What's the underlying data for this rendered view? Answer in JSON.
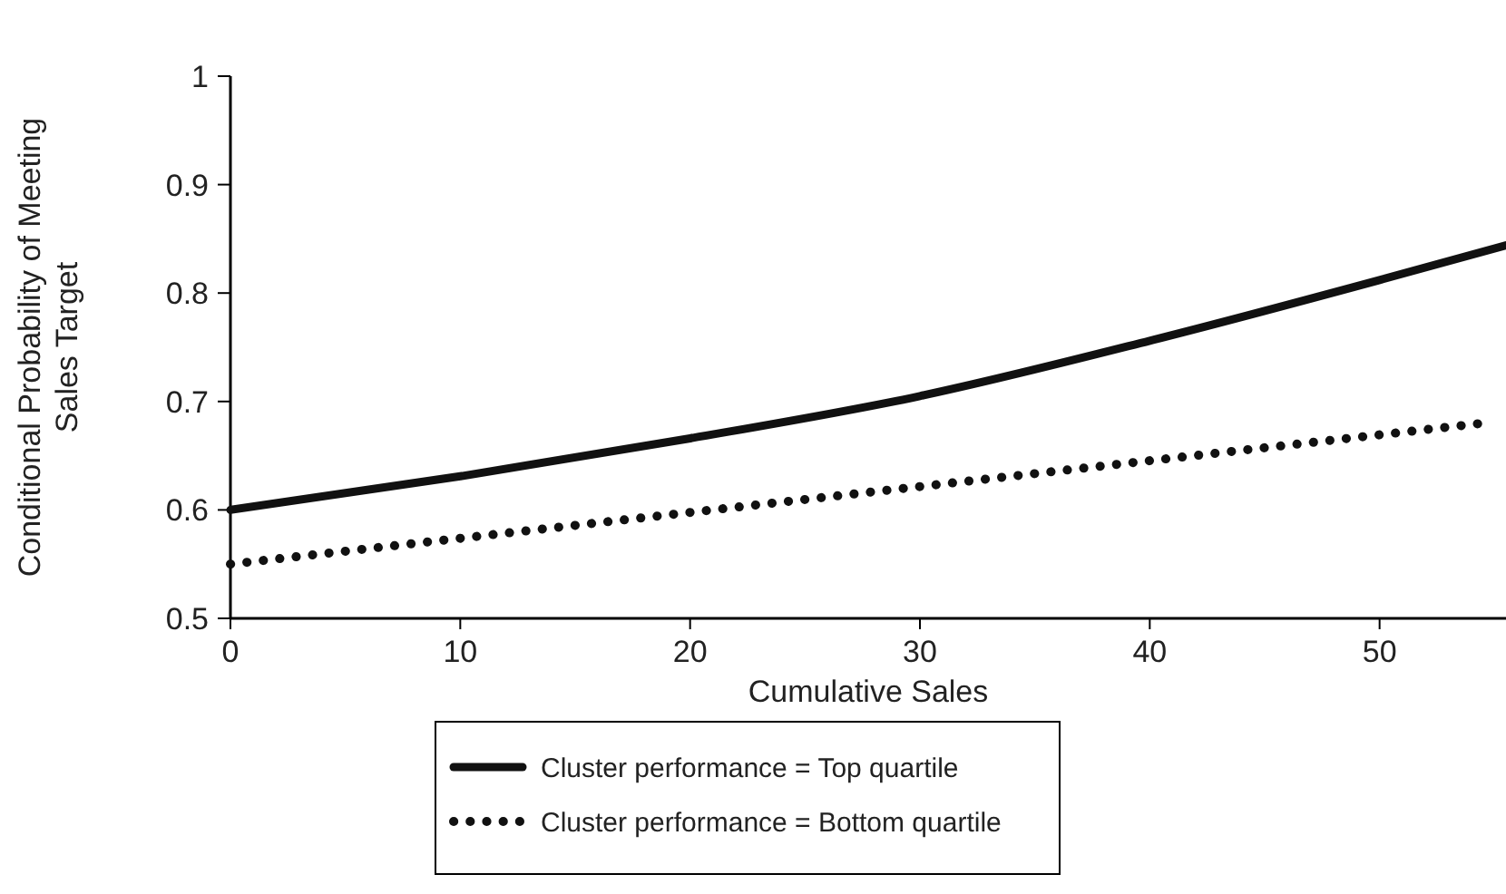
{
  "chart_data": {
    "type": "line",
    "xlabel": "Cumulative Sales",
    "ylabel": "Conditional Probability of Meeting Sales Target",
    "xlim": [
      0,
      55.5
    ],
    "ylim": [
      0.5,
      1
    ],
    "xticks": [
      0,
      10,
      20,
      30,
      40,
      50
    ],
    "yticks": [
      0.5,
      0.6,
      0.7,
      0.8,
      0.9,
      1
    ],
    "grid": false,
    "legend": "bottom",
    "x": [
      0,
      10,
      20,
      30,
      40,
      50,
      55.5
    ],
    "series": [
      {
        "name": "Cluster performance = Top quartile",
        "color": "#111111",
        "line_style": "solid",
        "values": [
          0.6,
          0.631,
          0.666,
          0.705,
          0.756,
          0.812,
          0.844
        ]
      },
      {
        "name": "Cluster performance = Bottom quartile",
        "color": "#111111",
        "line_style": "dotted",
        "x": [
          0,
          54.5
        ],
        "values": [
          0.55,
          0.68
        ]
      }
    ]
  }
}
